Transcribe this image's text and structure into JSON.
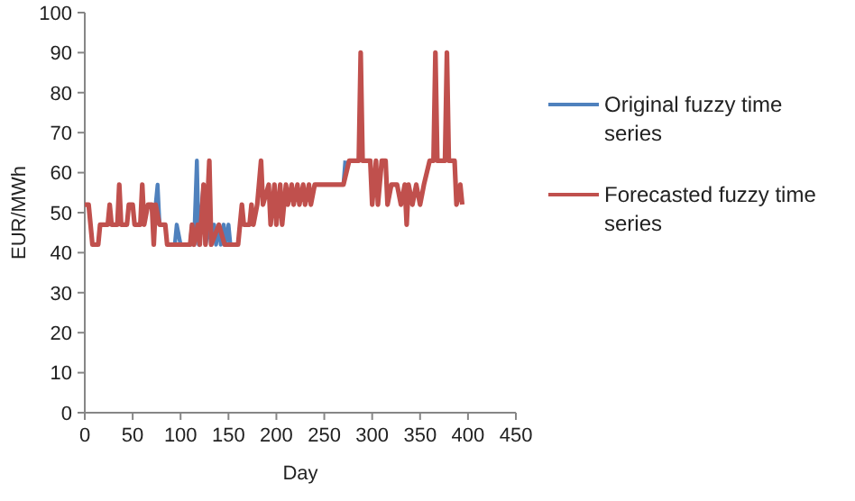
{
  "chart_data": {
    "type": "line",
    "xlabel": "Day",
    "ylabel": "EUR/MWh",
    "xlim": [
      0,
      450
    ],
    "xticks": [
      0,
      50,
      100,
      150,
      200,
      250,
      300,
      350,
      400,
      450
    ],
    "ylim": [
      0,
      100
    ],
    "yticks": [
      0,
      10,
      20,
      30,
      40,
      50,
      60,
      70,
      80,
      90,
      100
    ],
    "legend": "right",
    "marker": "none",
    "line_style": "solid",
    "grid": false,
    "series": [
      {
        "name": "Original fuzzy time series",
        "color": "#4f81bd",
        "x": [
          74,
          76,
          78,
          84,
          86,
          94,
          96,
          100,
          102,
          110,
          112,
          114,
          117,
          119,
          124,
          126,
          130,
          132,
          135,
          137,
          140,
          142,
          145,
          147,
          150,
          152,
          160,
          250,
          270,
          272
        ],
        "values": [
          52,
          57,
          47,
          null,
          42,
          42,
          47,
          42,
          42,
          42,
          47,
          42,
          63,
          42,
          57,
          42,
          47,
          42,
          47,
          42,
          47,
          42,
          47,
          42,
          47,
          42,
          42,
          null,
          57,
          63
        ]
      },
      {
        "name": "Forecasted fuzzy time series",
        "color": "#c0504d",
        "x": [
          0,
          4,
          6,
          8,
          14,
          16,
          24,
          26,
          28,
          34,
          36,
          38,
          44,
          46,
          50,
          52,
          58,
          60,
          62,
          66,
          70,
          72,
          74,
          78,
          84,
          86,
          110,
          112,
          114,
          118,
          120,
          124,
          126,
          130,
          132,
          140,
          146,
          160,
          162,
          164,
          166,
          172,
          174,
          176,
          180,
          184,
          186,
          192,
          194,
          198,
          200,
          204,
          206,
          210,
          212,
          216,
          218,
          222,
          224,
          228,
          230,
          234,
          236,
          240,
          250,
          270,
          276,
          286,
          288,
          290,
          298,
          300,
          304,
          306,
          310,
          314,
          316,
          320,
          326,
          330,
          334,
          336,
          338,
          342,
          346,
          350,
          354,
          360,
          364,
          366,
          368,
          376,
          378,
          380,
          386,
          388,
          392,
          394
        ],
        "values": [
          52,
          52,
          47,
          42,
          42,
          47,
          47,
          52,
          47,
          47,
          57,
          47,
          47,
          52,
          52,
          47,
          47,
          57,
          47,
          52,
          52,
          42,
          52,
          47,
          47,
          42,
          42,
          47,
          42,
          47,
          42,
          57,
          42,
          63,
          42,
          47,
          42,
          42,
          47,
          52,
          47,
          47,
          52,
          47,
          52,
          63,
          52,
          57,
          47,
          57,
          47,
          57,
          47,
          57,
          52,
          57,
          52,
          57,
          52,
          57,
          52,
          57,
          52,
          57,
          57,
          57,
          63,
          63,
          90,
          63,
          63,
          52,
          63,
          52,
          63,
          63,
          52,
          57,
          57,
          52,
          57,
          47,
          57,
          52,
          57,
          52,
          57,
          63,
          63,
          90,
          63,
          63,
          90,
          63,
          63,
          52,
          57,
          52
        ]
      }
    ]
  }
}
